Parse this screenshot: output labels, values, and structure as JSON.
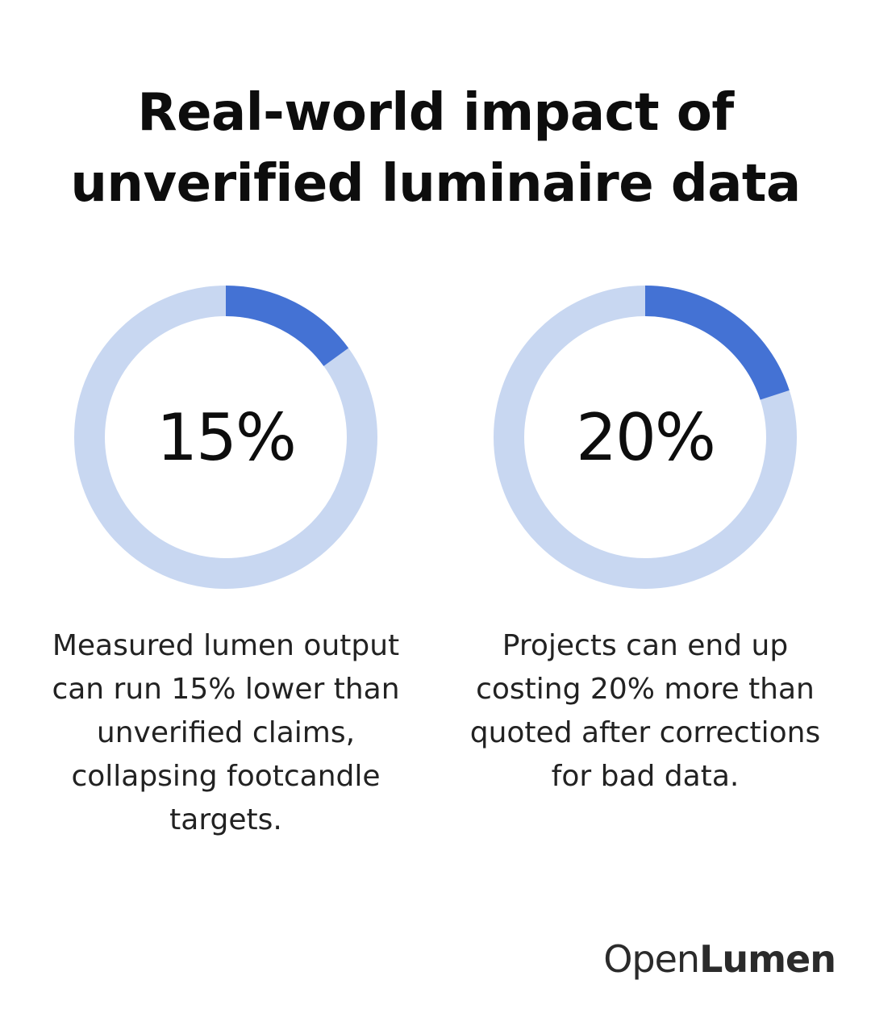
{
  "title": "Real-world impact of unverified luminaire data",
  "colors": {
    "accent": "#4472d4",
    "track": "#c8d7f1"
  },
  "chart_data": [
    {
      "type": "pie",
      "value": 15,
      "label": "15%",
      "caption": "Measured lumen output can run 15% lower than unverified claims, collapsing footcandle targets."
    },
    {
      "type": "pie",
      "value": 20,
      "label": "20%",
      "caption": "Projects can end up costing 20% more than quoted after corrections for bad data."
    }
  ],
  "logo": {
    "part1": "Open",
    "part2": "Lumen"
  }
}
